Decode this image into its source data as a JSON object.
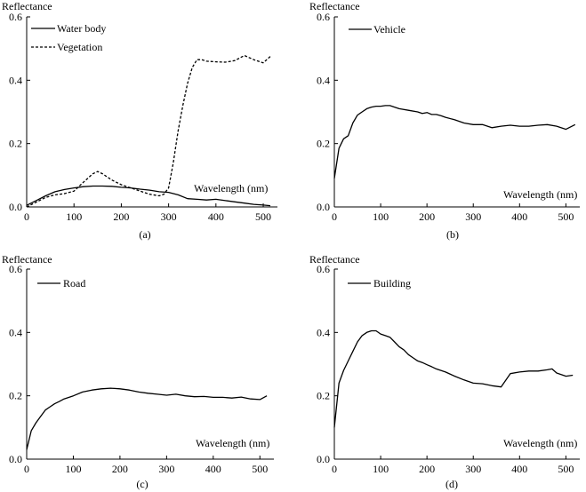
{
  "chart_data": [
    {
      "type": "line",
      "panel_label": "(a)",
      "ylabel": "Reflectance",
      "xlabel": "Wavelength (nm)",
      "xlim": [
        0,
        530
      ],
      "ylim": [
        0,
        0.6
      ],
      "xticks": [
        "0",
        "100",
        "200",
        "300",
        "400",
        "500"
      ],
      "yticks": [
        "0.0",
        "0.2",
        "0.4",
        "0.6"
      ],
      "legend_position": "top-left",
      "series": [
        {
          "name": "Water body",
          "style": "solid",
          "x": [
            0,
            20,
            40,
            60,
            80,
            100,
            120,
            140,
            160,
            180,
            200,
            220,
            240,
            260,
            280,
            300,
            320,
            340,
            360,
            380,
            400,
            420,
            440,
            460,
            480,
            500,
            515
          ],
          "y": [
            0.005,
            0.02,
            0.035,
            0.048,
            0.055,
            0.06,
            0.064,
            0.066,
            0.066,
            0.065,
            0.062,
            0.06,
            0.056,
            0.053,
            0.048,
            0.046,
            0.038,
            0.026,
            0.024,
            0.022,
            0.024,
            0.02,
            0.016,
            0.012,
            0.008,
            0.006,
            0.004
          ]
        },
        {
          "name": "Vegetation",
          "style": "dashed",
          "x": [
            0,
            20,
            40,
            60,
            80,
            100,
            120,
            140,
            150,
            160,
            180,
            200,
            220,
            240,
            260,
            280,
            290,
            300,
            310,
            320,
            330,
            340,
            350,
            360,
            370,
            380,
            400,
            420,
            440,
            460,
            480,
            500,
            515
          ],
          "y": [
            0.0,
            0.015,
            0.03,
            0.038,
            0.042,
            0.05,
            0.078,
            0.105,
            0.112,
            0.105,
            0.085,
            0.07,
            0.06,
            0.05,
            0.04,
            0.035,
            0.04,
            0.06,
            0.14,
            0.24,
            0.32,
            0.39,
            0.44,
            0.465,
            0.465,
            0.46,
            0.458,
            0.457,
            0.462,
            0.478,
            0.465,
            0.455,
            0.475
          ]
        }
      ]
    },
    {
      "type": "line",
      "panel_label": "(b)",
      "ylabel": "Reflectance",
      "xlabel": "Wavelength (nm)",
      "xlim": [
        0,
        530
      ],
      "ylim": [
        0,
        0.6
      ],
      "xticks": [
        "0",
        "100",
        "200",
        "300",
        "400",
        "500"
      ],
      "yticks": [
        "0.0",
        "0.2",
        "0.4",
        "0.6"
      ],
      "legend_position": "top-left",
      "series": [
        {
          "name": "Vehicle",
          "style": "solid",
          "x": [
            0,
            10,
            20,
            30,
            40,
            50,
            60,
            70,
            80,
            90,
            100,
            110,
            120,
            140,
            160,
            180,
            190,
            200,
            210,
            220,
            230,
            240,
            260,
            280,
            300,
            320,
            340,
            360,
            380,
            400,
            420,
            440,
            460,
            480,
            500,
            520
          ],
          "y": [
            0.09,
            0.185,
            0.215,
            0.225,
            0.265,
            0.29,
            0.3,
            0.31,
            0.315,
            0.318,
            0.318,
            0.32,
            0.32,
            0.31,
            0.305,
            0.3,
            0.295,
            0.298,
            0.292,
            0.292,
            0.288,
            0.283,
            0.275,
            0.265,
            0.26,
            0.26,
            0.25,
            0.255,
            0.258,
            0.255,
            0.255,
            0.258,
            0.26,
            0.255,
            0.245,
            0.26
          ]
        }
      ]
    },
    {
      "type": "line",
      "panel_label": "(c)",
      "ylabel": "Reflectance",
      "xlabel": "Wavelength (nm)",
      "xlim": [
        0,
        530
      ],
      "ylim": [
        0,
        0.6
      ],
      "xticks": [
        "0",
        "100",
        "200",
        "300",
        "400",
        "500"
      ],
      "yticks": [
        "0.0",
        "0.2",
        "0.4",
        "0.6"
      ],
      "legend_position": "top-left",
      "series": [
        {
          "name": "Road",
          "style": "solid",
          "x": [
            0,
            10,
            20,
            30,
            40,
            50,
            60,
            70,
            80,
            100,
            120,
            140,
            160,
            180,
            200,
            220,
            240,
            260,
            280,
            300,
            320,
            340,
            360,
            380,
            400,
            420,
            440,
            460,
            480,
            500,
            515
          ],
          "y": [
            0.03,
            0.09,
            0.115,
            0.135,
            0.155,
            0.165,
            0.175,
            0.182,
            0.19,
            0.2,
            0.212,
            0.218,
            0.222,
            0.224,
            0.222,
            0.218,
            0.212,
            0.208,
            0.205,
            0.202,
            0.205,
            0.2,
            0.197,
            0.198,
            0.195,
            0.195,
            0.193,
            0.196,
            0.19,
            0.188,
            0.2
          ]
        }
      ]
    },
    {
      "type": "line",
      "panel_label": "(d)",
      "ylabel": "Reflectance",
      "xlabel": "Wavelength (nm)",
      "xlim": [
        0,
        530
      ],
      "ylim": [
        0,
        0.6
      ],
      "xticks": [
        "0",
        "100",
        "200",
        "300",
        "400",
        "500"
      ],
      "yticks": [
        "0.0",
        "0.2",
        "0.4",
        "0.6"
      ],
      "legend_position": "top-left",
      "series": [
        {
          "name": "Building",
          "style": "solid",
          "x": [
            0,
            10,
            20,
            30,
            40,
            50,
            60,
            70,
            80,
            90,
            100,
            110,
            120,
            130,
            140,
            150,
            160,
            170,
            180,
            190,
            200,
            210,
            220,
            240,
            260,
            280,
            300,
            320,
            340,
            360,
            380,
            400,
            420,
            440,
            460,
            470,
            480,
            500,
            515
          ],
          "y": [
            0.1,
            0.24,
            0.28,
            0.31,
            0.34,
            0.37,
            0.39,
            0.4,
            0.405,
            0.405,
            0.395,
            0.39,
            0.385,
            0.37,
            0.355,
            0.345,
            0.33,
            0.32,
            0.31,
            0.305,
            0.298,
            0.292,
            0.285,
            0.275,
            0.262,
            0.25,
            0.24,
            0.238,
            0.232,
            0.228,
            0.27,
            0.275,
            0.278,
            0.278,
            0.282,
            0.285,
            0.272,
            0.262,
            0.265
          ]
        }
      ]
    }
  ]
}
